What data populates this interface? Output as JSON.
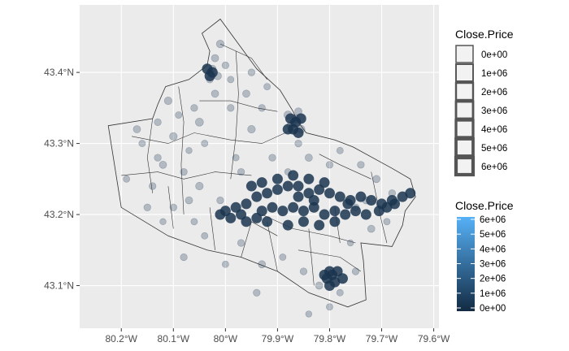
{
  "chart_data": {
    "type": "scatter",
    "title": "",
    "xlabel": "",
    "ylabel": "",
    "background": "#ebebeb",
    "grid": true,
    "x_ticks": [
      {
        "value": -80.2,
        "label": "80.2°W"
      },
      {
        "value": -80.1,
        "label": "80.1°W"
      },
      {
        "value": -80.0,
        "label": "80°W"
      },
      {
        "value": -79.9,
        "label": "79.9°W"
      },
      {
        "value": -79.8,
        "label": "79.8°W"
      },
      {
        "value": -79.7,
        "label": "79.7°W"
      },
      {
        "value": -79.6,
        "label": "79.6°W"
      }
    ],
    "y_ticks": [
      {
        "value": 43.1,
        "label": "43.1°N"
      },
      {
        "value": 43.2,
        "label": "43.2°N"
      },
      {
        "value": 43.3,
        "label": "43.3°N"
      },
      {
        "value": 43.4,
        "label": "43.4°N"
      }
    ],
    "xlim": [
      -80.28,
      -79.59
    ],
    "ylim": [
      43.04,
      43.495
    ],
    "boundary_outline": [
      [
        -80.225,
        43.325
      ],
      [
        -80.14,
        43.335
      ],
      [
        -80.13,
        43.355
      ],
      [
        -80.115,
        43.38
      ],
      [
        -80.07,
        43.39
      ],
      [
        -80.035,
        43.41
      ],
      [
        -80.03,
        43.43
      ],
      [
        -80.045,
        43.455
      ],
      [
        -80.01,
        43.475
      ],
      [
        -79.975,
        43.44
      ],
      [
        -79.94,
        43.405
      ],
      [
        -79.895,
        43.375
      ],
      [
        -79.87,
        43.345
      ],
      [
        -79.86,
        43.33
      ],
      [
        -79.845,
        43.315
      ],
      [
        -79.79,
        43.305
      ],
      [
        -79.755,
        43.295
      ],
      [
        -79.68,
        43.265
      ],
      [
        -79.645,
        43.25
      ],
      [
        -79.635,
        43.225
      ],
      [
        -79.655,
        43.205
      ],
      [
        -79.66,
        43.185
      ],
      [
        -79.68,
        43.155
      ],
      [
        -79.74,
        43.16
      ],
      [
        -79.735,
        43.135
      ],
      [
        -79.73,
        43.08
      ],
      [
        -79.765,
        43.07
      ],
      [
        -79.84,
        43.09
      ],
      [
        -79.9,
        43.12
      ],
      [
        -79.97,
        43.14
      ],
      [
        -80.035,
        43.15
      ],
      [
        -80.11,
        43.17
      ],
      [
        -80.2,
        43.21
      ],
      [
        -80.225,
        43.325
      ]
    ],
    "inner_lines": [
      [
        [
          -80.18,
          43.31
        ],
        [
          -80.11,
          43.3
        ],
        [
          -80.06,
          43.315
        ],
        [
          -79.99,
          43.305
        ],
        [
          -79.93,
          43.3
        ],
        [
          -79.87,
          43.32
        ]
      ],
      [
        [
          -80.2,
          43.255
        ],
        [
          -80.13,
          43.26
        ],
        [
          -80.08,
          43.25
        ],
        [
          -80.02,
          43.26
        ],
        [
          -79.95,
          43.255
        ]
      ],
      [
        [
          -80.05,
          43.36
        ],
        [
          -79.99,
          43.36
        ],
        [
          -79.94,
          43.35
        ],
        [
          -79.9,
          43.345
        ]
      ],
      [
        [
          -80.09,
          43.38
        ],
        [
          -80.08,
          43.33
        ],
        [
          -80.085,
          43.27
        ],
        [
          -80.08,
          43.2
        ]
      ],
      [
        [
          -79.98,
          43.43
        ],
        [
          -79.975,
          43.37
        ],
        [
          -79.98,
          43.31
        ],
        [
          -79.99,
          43.25
        ]
      ],
      [
        [
          -80.14,
          43.335
        ],
        [
          -80.15,
          43.28
        ],
        [
          -80.14,
          43.23
        ]
      ],
      [
        [
          -79.93,
          43.2
        ],
        [
          -79.87,
          43.18
        ],
        [
          -79.8,
          43.17
        ],
        [
          -79.75,
          43.16
        ]
      ],
      [
        [
          -79.92,
          43.19
        ],
        [
          -79.9,
          43.12
        ]
      ],
      [
        [
          -79.84,
          43.18
        ],
        [
          -79.83,
          43.1
        ]
      ],
      [
        [
          -79.79,
          43.21
        ],
        [
          -79.78,
          43.16
        ]
      ],
      [
        [
          -79.72,
          43.26
        ],
        [
          -79.7,
          43.19
        ],
        [
          -79.69,
          43.16
        ]
      ],
      [
        [
          -80.03,
          43.21
        ],
        [
          -80.02,
          43.15
        ]
      ],
      [
        [
          -80.11,
          43.24
        ],
        [
          -80.1,
          43.18
        ]
      ],
      [
        [
          -80.01,
          43.44
        ],
        [
          -79.95,
          43.42
        ],
        [
          -79.92,
          43.39
        ]
      ],
      [
        [
          -79.97,
          43.14
        ],
        [
          -79.95,
          43.19
        ],
        [
          -79.9,
          43.17
        ]
      ],
      [
        [
          -79.86,
          43.15
        ],
        [
          -79.78,
          43.14
        ],
        [
          -79.74,
          43.12
        ]
      ],
      [
        [
          -79.82,
          43.285
        ],
        [
          -79.78,
          43.27
        ],
        [
          -79.72,
          43.25
        ]
      ]
    ],
    "points": [
      [
        -80.17,
        43.32,
        0.7
      ],
      [
        -80.19,
        43.25,
        0.5
      ],
      [
        -80.13,
        43.28,
        0.6
      ],
      [
        -80.1,
        43.31,
        0.8
      ],
      [
        -80.07,
        43.29,
        0.4
      ],
      [
        -80.14,
        43.24,
        0.6
      ],
      [
        -80.05,
        43.33,
        0.9
      ],
      [
        -80.02,
        43.37,
        0.7
      ],
      [
        -80.0,
        43.41,
        0.6
      ],
      [
        -80.01,
        43.44,
        0.8
      ],
      [
        -79.99,
        43.39,
        0.5
      ],
      [
        -79.96,
        43.37,
        0.7
      ],
      [
        -79.93,
        43.35,
        0.6
      ],
      [
        -79.95,
        43.32,
        0.8
      ],
      [
        -80.04,
        43.3,
        0.5
      ],
      [
        -80.08,
        43.26,
        0.6
      ],
      [
        -80.12,
        43.27,
        0.7
      ],
      [
        -80.16,
        43.3,
        0.5
      ],
      [
        -80.03,
        43.39,
        0.6
      ],
      [
        -80.02,
        43.42,
        0.7
      ],
      [
        -80.06,
        43.35,
        0.6
      ],
      [
        -80.09,
        43.34,
        0.5
      ],
      [
        -80.11,
        43.36,
        0.8
      ],
      [
        -80.13,
        43.33,
        0.6
      ],
      [
        -80.05,
        43.24,
        0.8
      ],
      [
        -80.01,
        43.22,
        0.6
      ],
      [
        -79.98,
        43.28,
        0.5
      ],
      [
        -79.97,
        43.26,
        0.6
      ],
      [
        -80.07,
        43.22,
        0.7
      ],
      [
        -80.1,
        43.21,
        0.6
      ],
      [
        -80.04,
        43.17,
        0.5
      ],
      [
        -79.97,
        43.16,
        0.6
      ],
      [
        -79.93,
        43.13,
        0.7
      ],
      [
        -79.89,
        43.14,
        0.5
      ],
      [
        -79.85,
        43.12,
        0.6
      ],
      [
        -79.82,
        43.1,
        0.7
      ],
      [
        -79.78,
        43.09,
        0.5
      ],
      [
        -79.75,
        43.12,
        0.6
      ],
      [
        -79.76,
        43.16,
        0.4
      ],
      [
        -79.72,
        43.18,
        0.7
      ],
      [
        -79.69,
        43.19,
        0.5
      ],
      [
        -79.68,
        43.23,
        0.6
      ],
      [
        -79.71,
        43.25,
        0.7
      ],
      [
        -79.74,
        43.27,
        0.6
      ],
      [
        -79.78,
        43.29,
        0.5
      ],
      [
        -79.8,
        43.27,
        0.6
      ],
      [
        -79.84,
        43.28,
        0.7
      ],
      [
        -79.86,
        43.3,
        0.6
      ],
      [
        -79.88,
        43.26,
        0.5
      ],
      [
        -79.91,
        43.28,
        0.6
      ],
      [
        -79.87,
        43.33,
        0.6
      ],
      [
        -79.88,
        43.34,
        0.9
      ],
      [
        -79.865,
        43.335,
        0.9
      ],
      [
        -79.875,
        43.325,
        0.8
      ],
      [
        -79.86,
        43.345,
        0.7
      ],
      [
        -79.855,
        43.32,
        0.9
      ],
      [
        -80.03,
        43.4,
        0.6
      ],
      [
        -80.015,
        43.395,
        0.8
      ],
      [
        -80.025,
        43.405,
        0.7
      ],
      [
        -79.99,
        43.35,
        0.6
      ],
      [
        -79.95,
        43.4,
        0.6
      ],
      [
        -79.92,
        43.38,
        0.5
      ],
      [
        -80.15,
        43.21,
        0.6
      ],
      [
        -80.12,
        43.19,
        0.4
      ],
      [
        -80.06,
        43.19,
        0.5
      ],
      [
        -80.08,
        43.14,
        0.6
      ],
      [
        -80.0,
        43.13,
        0.5
      ],
      [
        -79.94,
        43.09,
        0.6
      ],
      [
        -79.8,
        43.07,
        0.5
      ],
      [
        -79.84,
        43.06,
        0.4
      ],
      [
        -79.75,
        43.21,
        0.6
      ],
      [
        -79.73,
        43.22,
        0.7
      ]
    ],
    "dense_points": [
      [
        -79.94,
        43.225,
        1.0
      ],
      [
        -79.92,
        43.23,
        1.0
      ],
      [
        -79.9,
        43.235,
        1.0
      ],
      [
        -79.88,
        43.24,
        1.0
      ],
      [
        -79.86,
        43.225,
        1.0
      ],
      [
        -79.84,
        43.23,
        1.0
      ],
      [
        -79.82,
        43.235,
        1.0
      ],
      [
        -79.8,
        43.23,
        1.0
      ],
      [
        -79.78,
        43.225,
        1.0
      ],
      [
        -79.76,
        43.22,
        1.0
      ],
      [
        -79.74,
        43.225,
        1.0
      ],
      [
        -79.72,
        43.22,
        1.0
      ],
      [
        -79.7,
        43.215,
        1.0
      ],
      [
        -79.68,
        43.22,
        1.0
      ],
      [
        -79.66,
        43.225,
        1.0
      ],
      [
        -79.645,
        43.23,
        1.0
      ],
      [
        -79.96,
        43.215,
        1.0
      ],
      [
        -79.98,
        43.21,
        1.0
      ],
      [
        -80.0,
        43.205,
        1.0
      ],
      [
        -79.97,
        43.2,
        1.0
      ],
      [
        -79.93,
        43.205,
        1.0
      ],
      [
        -79.91,
        43.21,
        1.0
      ],
      [
        -79.89,
        43.205,
        1.0
      ],
      [
        -79.87,
        43.21,
        1.0
      ],
      [
        -79.85,
        43.205,
        1.0
      ],
      [
        -79.83,
        43.21,
        1.0
      ],
      [
        -79.81,
        43.2,
        1.0
      ],
      [
        -79.79,
        43.205,
        1.0
      ],
      [
        -79.77,
        43.2,
        1.0
      ],
      [
        -79.75,
        43.205,
        1.0
      ],
      [
        -79.73,
        43.2,
        1.0
      ],
      [
        -79.9,
        43.25,
        1.0
      ],
      [
        -79.87,
        43.255,
        1.0
      ],
      [
        -79.84,
        43.25,
        1.0
      ],
      [
        -79.81,
        43.245,
        1.0
      ],
      [
        -79.92,
        43.19,
        1.0
      ],
      [
        -79.88,
        43.185,
        1.0
      ],
      [
        -79.85,
        43.19,
        1.0
      ],
      [
        -79.82,
        43.185,
        1.0
      ],
      [
        -79.79,
        43.19,
        1.0
      ],
      [
        -79.94,
        43.195,
        1.0
      ],
      [
        -79.96,
        43.19,
        1.0
      ],
      [
        -79.99,
        43.195,
        1.0
      ],
      [
        -80.01,
        43.2,
        1.0
      ],
      [
        -79.95,
        43.24,
        1.0
      ],
      [
        -79.93,
        43.245,
        1.0
      ],
      [
        -79.86,
        43.24,
        1.0
      ],
      [
        -79.83,
        43.22,
        1.0
      ],
      [
        -79.765,
        43.215,
        1.0
      ],
      [
        -79.705,
        43.205,
        1.0
      ],
      [
        -79.69,
        43.21,
        1.0
      ],
      [
        -79.675,
        43.215,
        1.0
      ],
      [
        -79.8,
        43.12,
        1.0
      ],
      [
        -79.795,
        43.115,
        1.0
      ],
      [
        -79.805,
        43.11,
        1.0
      ],
      [
        -79.79,
        43.105,
        1.0
      ],
      [
        -79.8,
        43.1,
        1.0
      ],
      [
        -79.81,
        43.115,
        1.0
      ],
      [
        -79.785,
        43.12,
        1.0
      ],
      [
        -79.775,
        43.11,
        1.0
      ],
      [
        -79.865,
        43.33,
        1.0
      ],
      [
        -79.87,
        43.32,
        1.0
      ],
      [
        -79.86,
        43.315,
        1.0
      ],
      [
        -79.855,
        43.335,
        1.0
      ],
      [
        -79.875,
        43.335,
        1.0
      ],
      [
        -79.88,
        43.32,
        1.0
      ],
      [
        -80.03,
        43.395,
        1.0
      ],
      [
        -80.025,
        43.4,
        1.0
      ],
      [
        -80.035,
        43.405,
        1.0
      ]
    ],
    "legend_size": {
      "title": "Close.Price",
      "labels": [
        "0e+00",
        "1e+06",
        "2e+06",
        "3e+06",
        "4e+06",
        "5e+06",
        "6e+06"
      ]
    },
    "legend_color": {
      "title": "Close.Price",
      "labels": [
        "6e+06",
        "5e+06",
        "4e+06",
        "3e+06",
        "2e+06",
        "1e+06",
        "0e+00"
      ],
      "color_low": "#132b43",
      "color_high": "#56b1f7"
    }
  }
}
